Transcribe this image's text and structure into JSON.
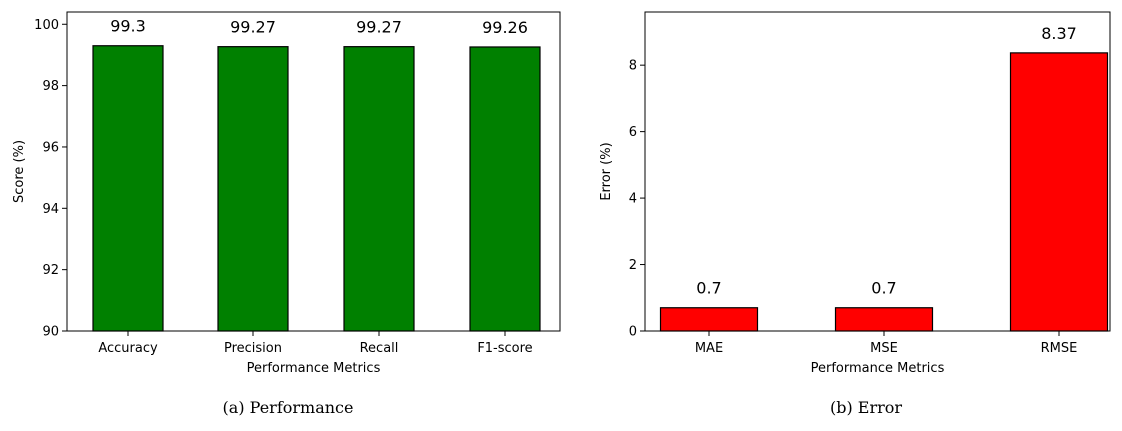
{
  "chart_data": [
    {
      "type": "bar",
      "categories": [
        "Accuracy",
        "Precision",
        "Recall",
        "F1-score"
      ],
      "values": [
        99.3,
        99.27,
        99.27,
        99.26
      ],
      "value_labels": [
        "99.3",
        "99.27",
        "99.27",
        "99.26"
      ],
      "xlabel": "Performance Metrics",
      "ylabel": "Score (%)",
      "ylim": [
        90,
        100.4
      ],
      "yticks": [
        90,
        92,
        94,
        96,
        98,
        100
      ],
      "ytick_labels": [
        "90",
        "92",
        "94",
        "96",
        "98",
        "100"
      ],
      "bar_color": "#008000",
      "caption": "(a) Performance",
      "grid": false
    },
    {
      "type": "bar",
      "categories": [
        "MAE",
        "MSE",
        "RMSE"
      ],
      "values": [
        0.7,
        0.7,
        8.37
      ],
      "value_labels": [
        "0.7",
        "0.7",
        "8.37"
      ],
      "xlabel": "Performance Metrics",
      "ylabel": "Error (%)",
      "ylim": [
        0,
        9.6
      ],
      "yticks": [
        0,
        2,
        4,
        6,
        8
      ],
      "ytick_labels": [
        "0",
        "2",
        "4",
        "6",
        "8"
      ],
      "bar_color": "#ff0000",
      "caption": "(b) Error",
      "grid": false
    }
  ]
}
